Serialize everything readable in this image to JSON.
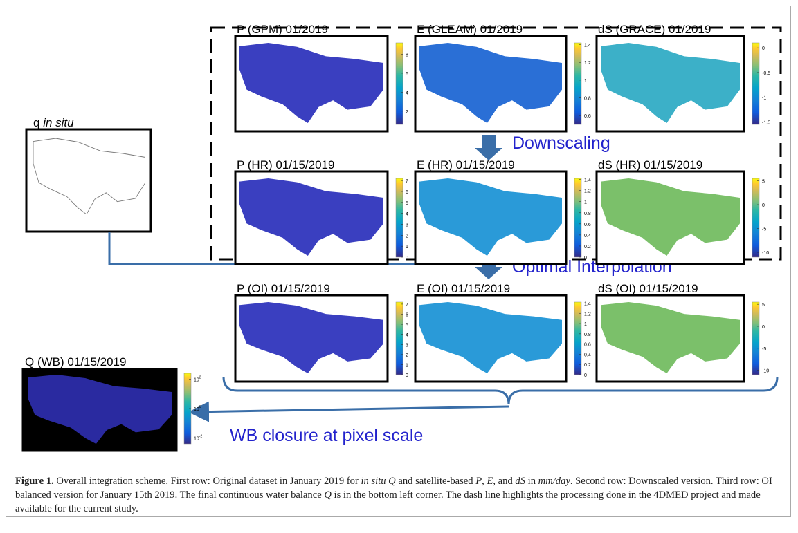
{
  "figure": {
    "panels": [
      {
        "title": "P (GPM) 01/2019",
        "fill": "#3a3fc0",
        "lim": [
          0.6,
          9.2
        ],
        "ticks": [
          8,
          6,
          4,
          2
        ]
      },
      {
        "title": "E (GLEAM) 01/2019",
        "fill": "#2a6fd6",
        "lim": [
          0.5,
          1.42
        ],
        "ticks": [
          1.4,
          1.2,
          1,
          0.8,
          0.6
        ]
      },
      {
        "title": "dS (GRACE) 01/2019",
        "fill": "#3cb0c8",
        "lim": [
          -1.55,
          0.1
        ],
        "ticks": [
          0,
          -0.5,
          -1,
          -1.5
        ]
      },
      {
        "title": "P (HR) 01/15/2019",
        "fill": "#3a3fc0",
        "lim": [
          0,
          7.2
        ],
        "ticks": [
          7,
          6,
          5,
          4,
          3,
          2,
          1,
          0
        ]
      },
      {
        "title": "E (HR) 01/15/2019",
        "fill": "#2a9ad8",
        "lim": [
          0,
          1.42
        ],
        "ticks": [
          1.4,
          1.2,
          1,
          0.8,
          0.6,
          0.4,
          0.2,
          0
        ]
      },
      {
        "title": "dS (HR) 01/15/2019",
        "fill": "#7bc06a",
        "lim": [
          -11,
          5.5
        ],
        "ticks": [
          5,
          0,
          -5,
          -10
        ]
      },
      {
        "title": "P (OI) 01/15/2019",
        "fill": "#3a3fc0",
        "lim": [
          0,
          7.2
        ],
        "ticks": [
          7,
          6,
          5,
          4,
          3,
          2,
          1,
          0
        ]
      },
      {
        "title": "E (OI) 01/15/2019",
        "fill": "#2a9ad8",
        "lim": [
          0,
          1.42
        ],
        "ticks": [
          1.4,
          1.2,
          1,
          0.8,
          0.6,
          0.4,
          0.2,
          0
        ]
      },
      {
        "title": "dS (OI) 01/15/2019",
        "fill": "#7bc06a",
        "lim": [
          -11,
          5.5
        ],
        "ticks": [
          5,
          0,
          -5,
          -10
        ]
      }
    ],
    "insitu": {
      "prefix": "q",
      "italic": "in situ"
    },
    "wb": {
      "title": "Q (WB) 01/15/2019",
      "fill": "#2a2aa0",
      "log": true,
      "lim": [
        0.004,
        250
      ],
      "ticks": [
        {
          "value": 100,
          "label": "10",
          "sup": "2"
        },
        {
          "value": 1,
          "label": "10",
          "sup": "0"
        },
        {
          "value": 0.01,
          "label": "10",
          "sup": "-2"
        }
      ]
    },
    "downscaling": "Downscaling",
    "oi": "Optimal Interpolation",
    "closure": "WB closure at pixel scale"
  },
  "caption": {
    "runs": [
      {
        "text": "Figure 1.",
        "style": "bold"
      },
      {
        "text": " Overall integration scheme. First row: Original dataset in January 2019 for ",
        "style": "normal"
      },
      {
        "text": "in situ Q",
        "style": "italic"
      },
      {
        "text": " and satellite-based ",
        "style": "normal"
      },
      {
        "text": "P",
        "style": "italic"
      },
      {
        "text": ", ",
        "style": "normal"
      },
      {
        "text": "E",
        "style": "italic"
      },
      {
        "text": ", and ",
        "style": "normal"
      },
      {
        "text": "dS",
        "style": "italic"
      },
      {
        "text": " in ",
        "style": "normal"
      },
      {
        "text": "mm/day",
        "style": "italic"
      },
      {
        "text": ". Second row: Downscaled version. Third row: OI balanced version for January 15th 2019. The final continuous water balance ",
        "style": "normal"
      },
      {
        "text": "Q",
        "style": "italic"
      },
      {
        "text": " is in the bottom left corner. The dash line highlights the processing done in the 4DMED project and made available for the current study.",
        "style": "normal"
      }
    ]
  }
}
